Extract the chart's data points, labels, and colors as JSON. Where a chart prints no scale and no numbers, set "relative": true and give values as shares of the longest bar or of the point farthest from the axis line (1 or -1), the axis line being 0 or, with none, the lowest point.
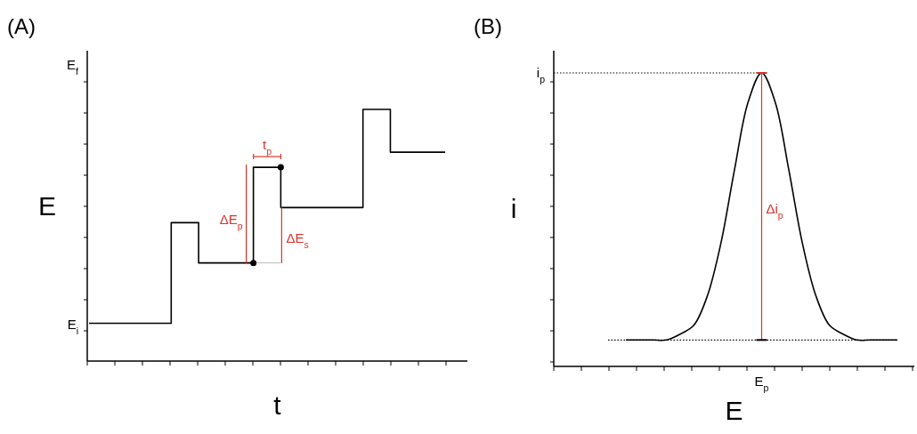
{
  "chart_data": [
    {
      "type": "step",
      "title": "(A)",
      "xlabel": "t",
      "ylabel": "E",
      "relative": true,
      "color": "#000000",
      "categories": [
        null,
        null,
        null,
        null,
        null,
        null,
        null,
        null,
        null,
        null,
        null,
        null,
        null,
        null
      ],
      "values": [
        0.15,
        0.15,
        0.15,
        0.55,
        0.39,
        0.39,
        0.77,
        0.61,
        0.61,
        0.61,
        1,
        0.83,
        0.83,
        0.83
      ],
      "annotations": [
        "E$_{f}$",
        "E$_{i}$",
        "t$_{p}$",
        "ΔE$_{p}$",
        "ΔE$_{s}$"
      ]
    },
    {
      "type": "line",
      "title": "(B)",
      "xlabel": "E",
      "ylabel": "i",
      "relative": true,
      "color": "#000000",
      "categories": [
        null,
        null,
        null,
        null,
        null,
        null,
        null,
        null,
        null,
        null,
        null,
        null,
        null,
        null,
        null,
        null,
        null,
        null,
        null,
        null,
        null
      ],
      "values": [
        0.09,
        0.09,
        0.09,
        0.09,
        0.11,
        0.14,
        0.24,
        0.42,
        0.67,
        0.9,
        1,
        0.9,
        0.67,
        0.42,
        0.24,
        0.14,
        0.11,
        0.09,
        0.09,
        0.09,
        0.09
      ],
      "ref_lines": [
        {
          "axis": "y",
          "value": 1,
          "label": "i$_{p}$",
          "line_style": "dotted",
          "color": "#000000"
        },
        {
          "axis": "y",
          "value": 0.09,
          "label": null,
          "line_style": "dotted",
          "color": "#000000"
        }
      ],
      "annotations": [
        "E$_{p}$",
        "Δi$_{p}$"
      ]
    }
  ]
}
